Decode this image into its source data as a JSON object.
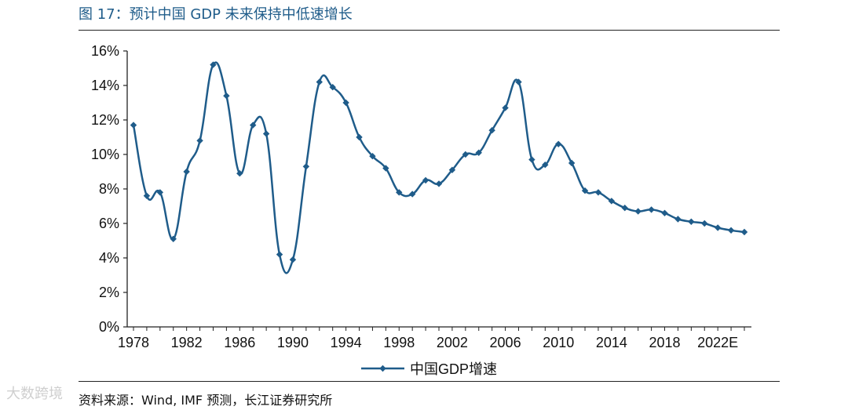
{
  "figure": {
    "title": "图 17：预计中国 GDP 未来保持中低速增长",
    "source": "资料来源：Wind, IMF 预测，长江证券研究所",
    "watermark": "大数跨境"
  },
  "colors": {
    "series": "#1f5c8a",
    "axis": "#222222",
    "title": "#1f5c8a"
  },
  "chart_data": {
    "type": "line",
    "title": "图 17：预计中国 GDP 未来保持中低速增长",
    "xlabel": "",
    "ylabel": "",
    "legend_position": "bottom-center",
    "grid": false,
    "ylim": [
      0,
      16
    ],
    "y_ticks": [
      "0%",
      "2%",
      "4%",
      "6%",
      "8%",
      "10%",
      "12%",
      "14%",
      "16%"
    ],
    "y_tick_values": [
      0,
      2,
      4,
      6,
      8,
      10,
      12,
      14,
      16
    ],
    "x_tick_labels": [
      "1978",
      "1982",
      "1986",
      "1990",
      "1994",
      "1998",
      "2002",
      "2006",
      "2010",
      "2014",
      "2018",
      "2022E"
    ],
    "x": [
      "1978",
      "1979",
      "1980",
      "1981",
      "1982",
      "1983",
      "1984",
      "1985",
      "1986",
      "1987",
      "1988",
      "1989",
      "1990",
      "1991",
      "1992",
      "1993",
      "1994",
      "1995",
      "1996",
      "1997",
      "1998",
      "1999",
      "2000",
      "2001",
      "2002",
      "2003",
      "2004",
      "2005",
      "2006",
      "2007",
      "2008",
      "2009",
      "2010",
      "2011",
      "2012",
      "2013",
      "2014",
      "2015",
      "2016",
      "2017",
      "2018",
      "2019",
      "2020E",
      "2021E",
      "2022E",
      "2023E",
      "2024E"
    ],
    "series": [
      {
        "name": "中国GDP增速",
        "values": [
          11.7,
          7.6,
          7.8,
          5.1,
          9.0,
          10.8,
          15.2,
          13.4,
          8.9,
          11.7,
          11.2,
          4.2,
          3.9,
          9.3,
          14.2,
          13.9,
          13.0,
          11.0,
          9.9,
          9.2,
          7.8,
          7.7,
          8.5,
          8.3,
          9.1,
          10.0,
          10.1,
          11.4,
          12.7,
          14.2,
          9.7,
          9.4,
          10.6,
          9.5,
          7.9,
          7.8,
          7.3,
          6.9,
          6.7,
          6.8,
          6.6,
          6.25,
          6.1,
          6.0,
          5.75,
          5.6,
          5.5
        ]
      }
    ]
  }
}
